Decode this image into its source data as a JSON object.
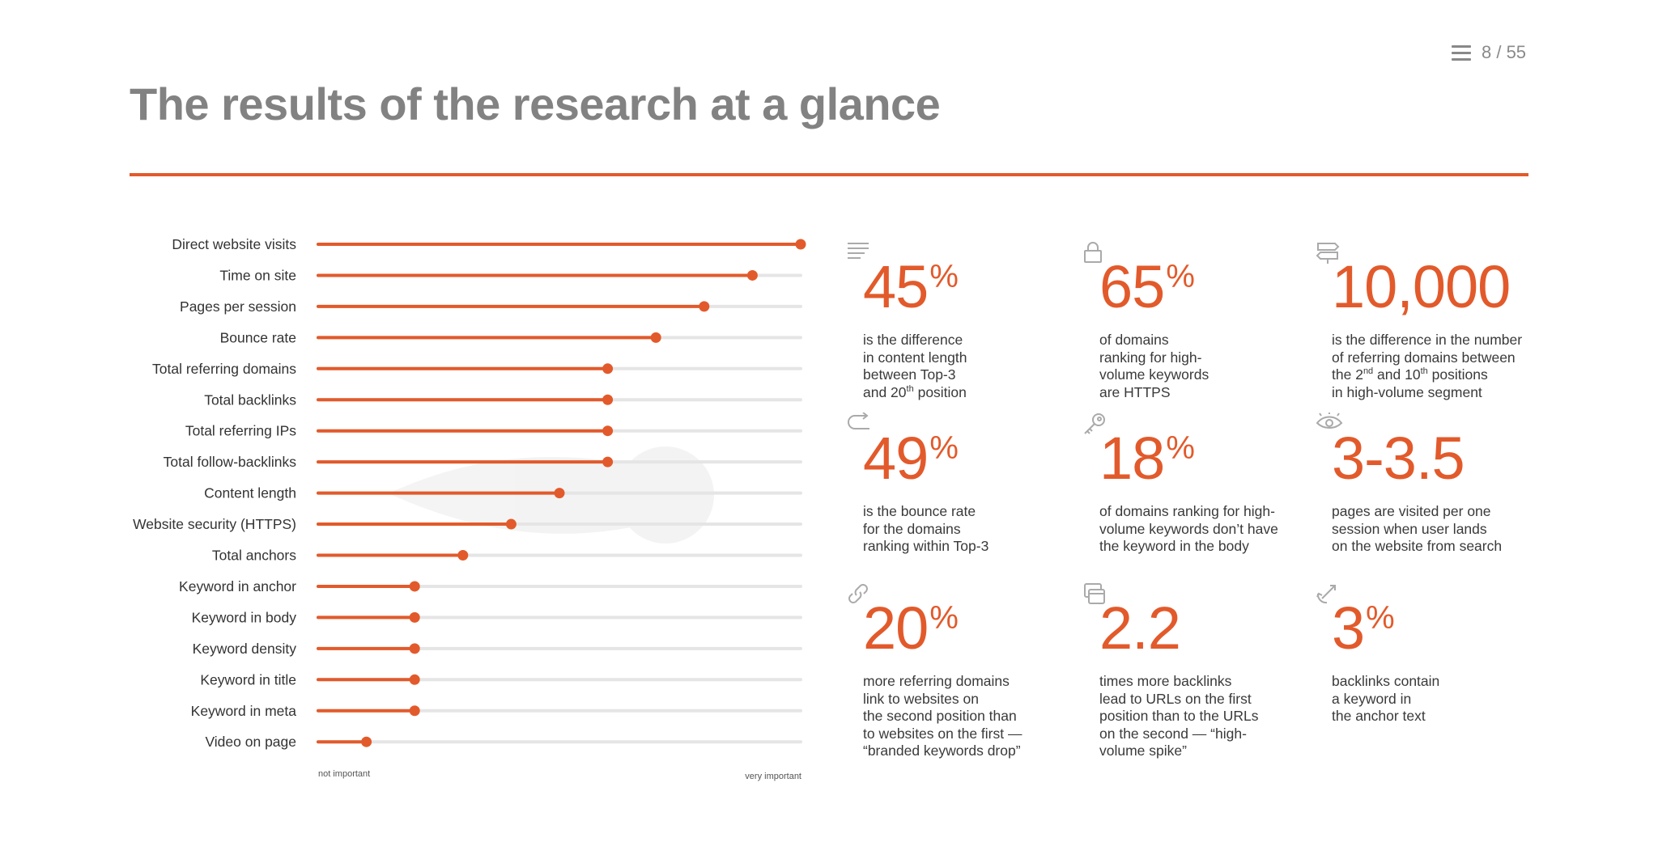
{
  "header": {
    "page_counter": "8 / 55",
    "title": "The results of the research at a glance"
  },
  "colors": {
    "accent": "#e25a2b",
    "track": "#e5e5e5",
    "title": "#828282"
  },
  "chart_data": {
    "type": "dot-plot",
    "title": "",
    "x_scale": "importance (relative)",
    "xlim": [
      0,
      1
    ],
    "x_left_label": "not important",
    "x_right_label": "very important",
    "grid": false,
    "categories": [
      "Direct website visits",
      "Time on site",
      "Pages per session",
      "Bounce rate",
      "Total referring domains",
      "Total backlinks",
      "Total referring IPs",
      "Total follow-backlinks",
      "Content length",
      "Website security (HTTPS)",
      "Total anchors",
      "Keyword in anchor",
      "Keyword in body",
      "Keyword density",
      "Keyword in title",
      "Keyword in meta",
      "Video on page"
    ],
    "values": [
      1.0,
      0.9,
      0.8,
      0.7,
      0.6,
      0.6,
      0.6,
      0.6,
      0.5,
      0.4,
      0.3,
      0.2,
      0.2,
      0.2,
      0.2,
      0.2,
      0.1
    ]
  },
  "stats": [
    {
      "id": "content-length",
      "icon": "text-lines-icon",
      "value": "45",
      "suffix": "%",
      "desc": "is the difference\nin content length\nbetween Top-3\nand 20th position"
    },
    {
      "id": "https",
      "icon": "lock-icon",
      "value": "65",
      "suffix": "%",
      "desc": "of domains\nranking for high-\nvolume keywords\nare HTTPS"
    },
    {
      "id": "referring-domains",
      "icon": "signpost-icon",
      "value": "10,000",
      "suffix": "",
      "desc": "is the difference in the number\nof referring domains between\nthe 2nd and 10th positions\nin high-volume segment"
    },
    {
      "id": "bounce-rate",
      "icon": "return-arrow-icon",
      "value": "49",
      "suffix": "%",
      "desc": "is the bounce rate\nfor the domains\nranking within Top-3"
    },
    {
      "id": "keyword-body",
      "icon": "key-icon",
      "value": "18",
      "suffix": "%",
      "desc": "of domains ranking for high-\nvolume keywords don’t have\nthe keyword in the body"
    },
    {
      "id": "pages-visited",
      "icon": "eye-icon",
      "value": "3-3.5",
      "suffix": "",
      "desc": "pages are visited per one\nsession when user lands\non the website from search"
    },
    {
      "id": "branded-drop",
      "icon": "link-icon",
      "value": "20",
      "suffix": "%",
      "desc": "more referring domains\nlink to websites on\nthe second position than\nto websites on the first —\n“branded keywords drop”"
    },
    {
      "id": "backlinks-spike",
      "icon": "windows-icon",
      "value": "2.2",
      "suffix": "",
      "desc": "times more backlinks\nlead to URLs on the first\nposition than to the URLs\non the second — “high-\nvolume spike”"
    },
    {
      "id": "anchor-keyword",
      "icon": "anchor-icon",
      "value": "3",
      "suffix": "%",
      "desc": "backlinks contain\na keyword in\nthe anchor text"
    }
  ]
}
